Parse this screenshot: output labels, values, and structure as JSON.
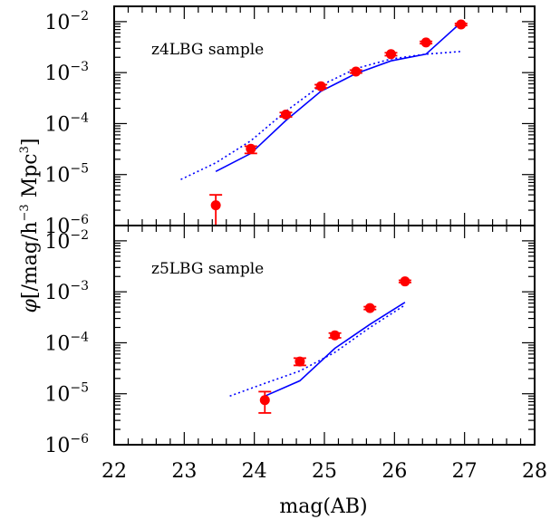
{
  "chart_data": {
    "type": "scatter",
    "ylabel_symbol": "φ",
    "ylabel_main": "[/mag/h",
    "ylabel_exp1": "−3",
    "ylabel_mid": " Mpc",
    "ylabel_exp2": "3",
    "ylabel_end": "]",
    "xlabel": "mag(AB)",
    "xlim": [
      22,
      28
    ],
    "xticks": [
      "22",
      "23",
      "24",
      "25",
      "26",
      "27",
      "28"
    ],
    "y_scale": "log",
    "ylim_log10": [
      -6,
      -1.7
    ],
    "yticks": [
      {
        "base": "10",
        "exp": "−2",
        "log": -2
      },
      {
        "base": "10",
        "exp": "−3",
        "log": -3
      },
      {
        "base": "10",
        "exp": "−4",
        "log": -4
      },
      {
        "base": "10",
        "exp": "−5",
        "log": -5
      },
      {
        "base": "10",
        "exp": "−6",
        "log": -6
      }
    ],
    "panels": [
      {
        "label": "z4LBG sample",
        "points": [
          {
            "x": 23.45,
            "y": 2.5e-06,
            "ylo": 1e-06,
            "yhi": 4e-06
          },
          {
            "x": 23.95,
            "y": 3.2e-05,
            "ylo": 2.6e-05,
            "yhi": 3.6e-05
          },
          {
            "x": 24.45,
            "y": 0.00015,
            "ylo": 0.000135,
            "yhi": 0.000165
          },
          {
            "x": 24.95,
            "y": 0.00054,
            "ylo": 0.0005,
            "yhi": 0.00058
          },
          {
            "x": 25.45,
            "y": 0.00105,
            "ylo": 0.00098,
            "yhi": 0.00112
          },
          {
            "x": 25.95,
            "y": 0.0023,
            "ylo": 0.00215,
            "yhi": 0.00245
          },
          {
            "x": 26.45,
            "y": 0.0039,
            "ylo": 0.0037,
            "yhi": 0.0041
          },
          {
            "x": 26.95,
            "y": 0.0088,
            "ylo": 0.0084,
            "yhi": 0.0092
          }
        ],
        "solid_line": [
          [
            23.45,
            1.15e-05
          ],
          [
            23.95,
            2.6e-05
          ],
          [
            24.45,
            0.000115
          ],
          [
            24.95,
            0.00043
          ],
          [
            25.45,
            0.00096
          ],
          [
            25.95,
            0.0017
          ],
          [
            26.45,
            0.0023
          ],
          [
            26.95,
            0.0096
          ]
        ],
        "dotted_line": [
          [
            22.95,
            8e-06
          ],
          [
            23.45,
            1.7e-05
          ],
          [
            23.95,
            4.6e-05
          ],
          [
            24.45,
            0.000175
          ],
          [
            24.95,
            0.00056
          ],
          [
            25.45,
            0.0012
          ],
          [
            25.95,
            0.00185
          ],
          [
            26.45,
            0.0023
          ],
          [
            26.95,
            0.0026
          ]
        ]
      },
      {
        "label": "z5LBG sample",
        "points": [
          {
            "x": 24.15,
            "y": 7.5e-06,
            "ylo": 4.2e-06,
            "yhi": 1.1e-05
          },
          {
            "x": 24.65,
            "y": 4.3e-05,
            "ylo": 3.6e-05,
            "yhi": 5e-05
          },
          {
            "x": 25.15,
            "y": 0.00014,
            "ylo": 0.000125,
            "yhi": 0.000155
          },
          {
            "x": 25.65,
            "y": 0.00048,
            "ylo": 0.00045,
            "yhi": 0.00051
          },
          {
            "x": 26.15,
            "y": 0.0016,
            "ylo": 0.00152,
            "yhi": 0.00168
          }
        ],
        "solid_line": [
          [
            24.15,
            9e-06
          ],
          [
            24.65,
            1.8e-05
          ],
          [
            25.15,
            7.8e-05
          ],
          [
            25.65,
            0.00023
          ],
          [
            26.15,
            0.00062
          ]
        ],
        "dotted_line": [
          [
            23.65,
            9e-06
          ],
          [
            24.15,
            1.6e-05
          ],
          [
            24.65,
            2.8e-05
          ],
          [
            25.15,
            6.5e-05
          ],
          [
            25.65,
            0.0002
          ],
          [
            26.15,
            0.00055
          ]
        ]
      }
    ],
    "colors": {
      "points": "#ff0000",
      "lines": "#0000ff",
      "axes": "#000000"
    },
    "grid": false
  }
}
